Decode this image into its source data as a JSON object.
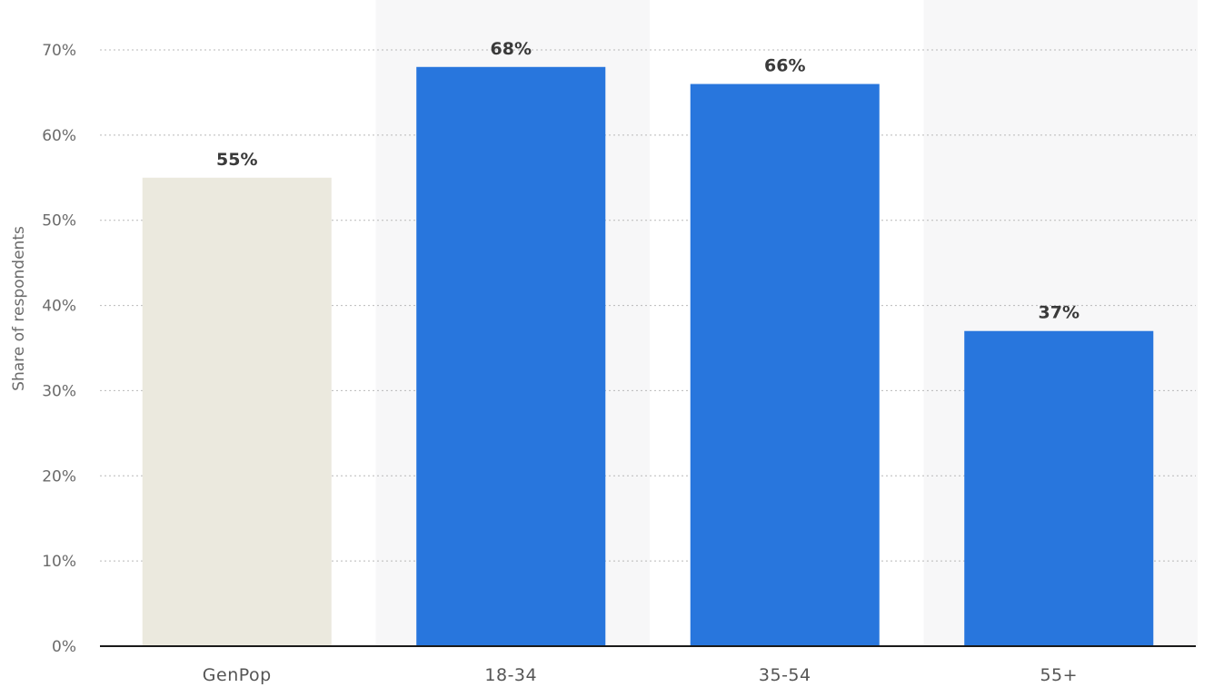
{
  "chart_data": {
    "type": "bar",
    "categories": [
      "GenPop",
      "18-34",
      "35-54",
      "55+"
    ],
    "values": [
      55,
      68,
      66,
      37
    ],
    "value_labels": [
      "55%",
      "68%",
      "66%",
      "37%"
    ],
    "ylabel": "Share of respondents",
    "ylim": [
      0,
      70
    ],
    "yticks": [
      0,
      10,
      20,
      30,
      40,
      50,
      60,
      70
    ],
    "ytick_labels": [
      "0%",
      "10%",
      "20%",
      "30%",
      "40%",
      "50%",
      "60%",
      "70%"
    ],
    "grid": true,
    "bar_colors": [
      "#ebe9de",
      "#2876dd",
      "#2876dd",
      "#2876dd"
    ],
    "alternating_band_color": "#f7f7f8"
  }
}
